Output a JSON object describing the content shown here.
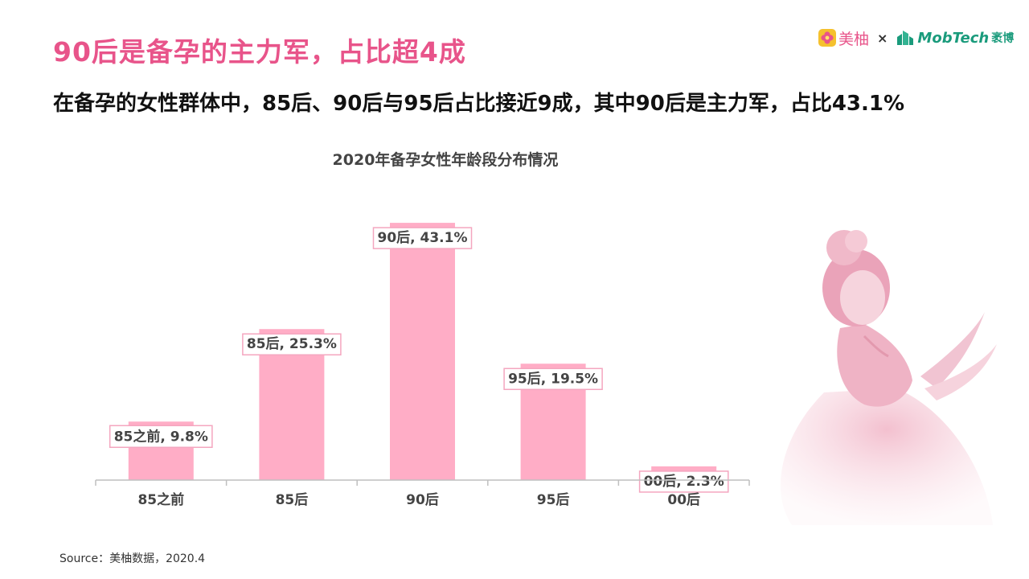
{
  "header": {
    "title": "90后是备孕的主力军，占比超4成",
    "subtitle": "在备孕的女性群体中，85后、90后与95后占比接近9成，其中90后是主力军，占比43.1%"
  },
  "logos": {
    "meiyou": "美柚",
    "separator": "×",
    "mobtech": "MobTech",
    "yuanbo": "袤博"
  },
  "chart_data": {
    "type": "bar",
    "title": "2020年备孕女性年龄段分布情况",
    "categories": [
      "85之前",
      "85后",
      "90后",
      "95后",
      "00后"
    ],
    "values": [
      9.8,
      25.3,
      43.1,
      19.5,
      2.3
    ],
    "data_labels": [
      "85之前, 9.8%",
      "85后, 25.3%",
      "90后, 43.1%",
      "95后, 19.5%",
      "00后, 2.3%"
    ],
    "bar_color": "#ffadc6",
    "grid": false,
    "legend": "none",
    "ylim": [
      0,
      45
    ]
  },
  "footer": {
    "source": "Source：美柚数据，2020.4"
  }
}
